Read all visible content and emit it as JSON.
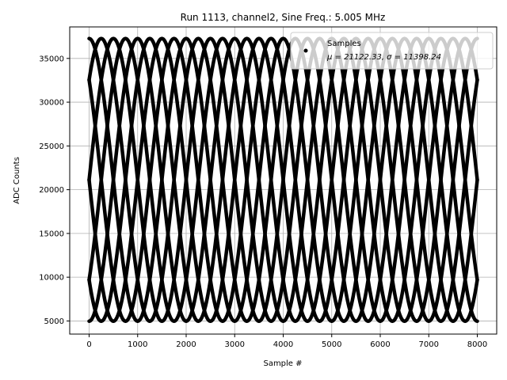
{
  "chart_data": {
    "type": "scatter",
    "title": "Run 1113, channel2, Sine Freq.: 5.005 MHz",
    "xlabel": "Sample #",
    "ylabel": "ADC Counts",
    "xlim": [
      -400,
      8400
    ],
    "ylim": [
      3500,
      38600
    ],
    "xticks": [
      0,
      1000,
      2000,
      3000,
      4000,
      5000,
      6000,
      7000,
      8000
    ],
    "yticks": [
      5000,
      10000,
      15000,
      20000,
      25000,
      30000,
      35000
    ],
    "grid": true,
    "legend_position": "top-right",
    "series": [
      {
        "name": "Samples",
        "color": "#000000",
        "marker": "point",
        "model": "sine",
        "x_range": [
          0,
          8000
        ],
        "mean": 21122.33,
        "amplitude": 16150,
        "period": 2000,
        "phases_deg": [
          0,
          45,
          90,
          135,
          180,
          225,
          270,
          315
        ]
      }
    ],
    "legend": {
      "label": "Samples",
      "stats": "μ = 21122.33, σ = 11398.24"
    }
  }
}
